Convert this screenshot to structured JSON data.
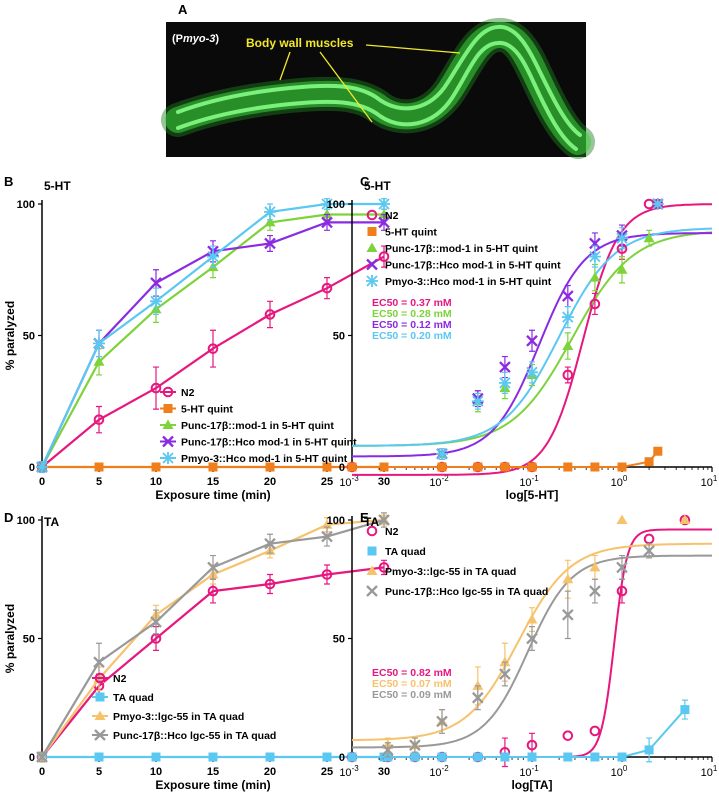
{
  "panel_a": {
    "letter": "A",
    "label_prefix": "(P",
    "label_gene": "myo-3",
    "label_suffix": ")",
    "annotation": "Body wall muscles",
    "bg_color": "#0a0a0a",
    "worm_color": "#3bd13b",
    "annotation_color": "#f2e92a"
  },
  "chart_data": [
    {
      "panel": "B",
      "type": "line",
      "tag": "5-HT",
      "xlabel": "Exposure time (min)",
      "ylabel": "% paralyzed",
      "xlim": [
        0,
        30
      ],
      "ylim": [
        0,
        100
      ],
      "xticks": [
        "0",
        "5",
        "10",
        "15",
        "20",
        "25",
        "30"
      ],
      "yticks": [
        "0",
        "50",
        "100"
      ],
      "x": [
        0,
        5,
        10,
        15,
        20,
        25,
        30
      ],
      "legend_position": "bottom-right",
      "series": [
        {
          "name": "N2",
          "color": "#e6177f",
          "marker": "circle",
          "values": [
            0,
            18,
            30,
            45,
            58,
            68,
            80
          ],
          "err": [
            2,
            5,
            8,
            7,
            5,
            4,
            4
          ]
        },
        {
          "name": "5-HT quint",
          "color": "#f07e1a",
          "marker": "square",
          "values": [
            0,
            0,
            0,
            0,
            0,
            0,
            0
          ],
          "err": [
            0,
            0,
            0,
            0,
            0,
            0,
            0
          ]
        },
        {
          "name": "Punc-17β::mod-1 in 5-HT quint",
          "color": "#7ed23a",
          "marker": "triangle",
          "values": [
            0,
            40,
            60,
            76,
            93,
            96,
            96
          ],
          "err": [
            2,
            5,
            5,
            4,
            3,
            2,
            2
          ]
        },
        {
          "name": "Punc-17β::Hco mod-1 in 5-HT quint",
          "color": "#8a2be2",
          "marker": "x",
          "values": [
            0,
            47,
            70,
            82,
            85,
            93,
            93
          ],
          "err": [
            2,
            5,
            5,
            4,
            3,
            3,
            3
          ]
        },
        {
          "name": "Pmyo-3::Hco mod-1 in 5-HT quint",
          "color": "#5ac8f0",
          "marker": "asterisk",
          "values": [
            0,
            47,
            63,
            80,
            97,
            100,
            100
          ],
          "err": [
            2,
            5,
            5,
            4,
            3,
            2,
            2
          ]
        }
      ]
    },
    {
      "panel": "C",
      "type": "line",
      "tag": "5-HT",
      "xlabel": "log[5-HT]",
      "xscale": "log",
      "xlim": [
        0.001,
        10
      ],
      "ylim": [
        0,
        100
      ],
      "yticks": [
        "0",
        "50",
        "100"
      ],
      "legend_position": "top-left",
      "ec50": [
        {
          "text": "EC50 = 0.37 mM",
          "color": "#e6177f"
        },
        {
          "text": "EC50 = 0.28 mM",
          "color": "#7ed23a"
        },
        {
          "text": "EC50 = 0.12 mM",
          "color": "#8a2be2"
        },
        {
          "text": "EC50 = 0.20 mM",
          "color": "#5ac8f0"
        }
      ],
      "series": [
        {
          "name": "N2",
          "color": "#e6177f",
          "marker": "circle",
          "x": [
            0.001,
            0.01,
            0.025,
            0.05,
            0.1,
            0.25,
            0.5,
            1,
            2,
            2.5
          ],
          "values": [
            0,
            0,
            0,
            0,
            0,
            35,
            62,
            83,
            100,
            100
          ],
          "err": [
            0,
            0,
            0,
            0,
            0,
            3,
            4,
            4,
            0,
            0
          ],
          "fit": {
            "bottom": -3,
            "top": 100,
            "ec50": 0.37,
            "hill": 2.2
          }
        },
        {
          "name": "5-HT quint",
          "color": "#f07e1a",
          "marker": "square",
          "x": [
            0.001,
            0.01,
            0.025,
            0.05,
            0.1,
            0.25,
            0.5,
            1,
            2,
            2.5
          ],
          "values": [
            0,
            0,
            0,
            0,
            0,
            0,
            0,
            0,
            2,
            6
          ],
          "err": [
            0,
            0,
            0,
            0,
            0,
            0,
            0,
            0,
            0,
            0
          ]
        },
        {
          "name": "Punc-17β::mod-1 in 5-HT quint",
          "color": "#7ed23a",
          "marker": "triangle",
          "x": [
            0.01,
            0.025,
            0.05,
            0.1,
            0.25,
            0.5,
            1,
            2
          ],
          "values": [
            5,
            25,
            30,
            35,
            46,
            72,
            75,
            87
          ],
          "err": [
            2,
            4,
            4,
            4,
            5,
            5,
            5,
            3
          ],
          "fit": {
            "bottom": 8,
            "top": 90,
            "ec50": 0.28,
            "hill": 1.3
          }
        },
        {
          "name": "Punc-17β::Hco mod-1 in 5-HT quint",
          "color": "#8a2be2",
          "marker": "x",
          "x": [
            0.01,
            0.025,
            0.05,
            0.1,
            0.25,
            0.5,
            1,
            2.5
          ],
          "values": [
            5,
            26,
            38,
            48,
            65,
            85,
            88,
            100
          ],
          "err": [
            2,
            3,
            4,
            4,
            4,
            4,
            4,
            0
          ],
          "fit": {
            "bottom": 4,
            "top": 89,
            "ec50": 0.12,
            "hill": 1.7
          }
        },
        {
          "name": "Pmyo-3::Hco mod-1 in 5-HT quint",
          "color": "#5ac8f0",
          "marker": "asterisk",
          "x": [
            0.01,
            0.025,
            0.05,
            0.1,
            0.25,
            0.5,
            1,
            2.5
          ],
          "values": [
            5,
            25,
            32,
            36,
            57,
            80,
            87,
            100
          ],
          "err": [
            2,
            3,
            4,
            4,
            4,
            4,
            4,
            0
          ],
          "fit": {
            "bottom": 8,
            "top": 91,
            "ec50": 0.2,
            "hill": 1.4
          }
        }
      ]
    },
    {
      "panel": "D",
      "type": "line",
      "tag": "TA",
      "xlabel": "Exposure time (min)",
      "ylabel": "% paralyzed",
      "xlim": [
        0,
        30
      ],
      "ylim": [
        0,
        100
      ],
      "xticks": [
        "0",
        "5",
        "10",
        "15",
        "20",
        "25",
        "30"
      ],
      "yticks": [
        "0",
        "50",
        "100"
      ],
      "x": [
        0,
        5,
        10,
        15,
        20,
        25,
        30
      ],
      "legend_position": "bottom-right",
      "series": [
        {
          "name": "N2",
          "color": "#e6177f",
          "marker": "circle",
          "values": [
            0,
            30,
            50,
            70,
            73,
            77,
            80
          ],
          "err": [
            2,
            5,
            5,
            5,
            4,
            4,
            3
          ]
        },
        {
          "name": "TA quad",
          "color": "#5ac8f0",
          "marker": "square",
          "values": [
            0,
            0,
            0,
            0,
            0,
            0,
            0
          ],
          "err": [
            0,
            0,
            0,
            0,
            0,
            0,
            0
          ]
        },
        {
          "name": "Pmyo-3::lgc-55 in TA quad",
          "color": "#f6c26b",
          "marker": "triangle",
          "values": [
            0,
            33,
            60,
            77,
            87,
            98,
            100
          ],
          "err": [
            2,
            5,
            4,
            4,
            3,
            3,
            2
          ]
        },
        {
          "name": "Punc-17β::Hco lgc-55 in TA quad",
          "color": "#999999",
          "marker": "x",
          "values": [
            0,
            40,
            57,
            80,
            90,
            93,
            100
          ],
          "err": [
            2,
            8,
            5,
            5,
            4,
            4,
            3
          ]
        }
      ]
    },
    {
      "panel": "E",
      "type": "line",
      "tag": "TA",
      "xlabel": "log[TA]",
      "xscale": "log",
      "xlim": [
        0.001,
        10
      ],
      "ylim": [
        0,
        100
      ],
      "yticks": [
        "0",
        "50",
        "100"
      ],
      "legend_position": "top-left",
      "ec50": [
        {
          "text": "EC50 = 0.82 mM",
          "color": "#e6177f"
        },
        {
          "text": "EC50 = 0.07 mM",
          "color": "#f6c26b"
        },
        {
          "text": "EC50 = 0.09 mM",
          "color": "#999999"
        }
      ],
      "series": [
        {
          "name": "N2",
          "color": "#e6177f",
          "marker": "circle",
          "x": [
            0.001,
            0.0025,
            0.005,
            0.01,
            0.025,
            0.05,
            0.1,
            0.25,
            0.5,
            1,
            2,
            5
          ],
          "values": [
            0,
            0,
            0,
            0,
            0,
            2,
            5,
            9,
            11,
            70,
            92,
            100
          ],
          "err": [
            0,
            0,
            0,
            0,
            0,
            6,
            5,
            0,
            0,
            5,
            0,
            0
          ],
          "fit": {
            "bottom": 0,
            "top": 96,
            "ec50": 0.82,
            "hill": 6
          }
        },
        {
          "name": "TA quad",
          "color": "#5ac8f0",
          "marker": "square",
          "x": [
            0.001,
            0.0025,
            0.005,
            0.01,
            0.025,
            0.05,
            0.1,
            0.25,
            0.5,
            1,
            2,
            5
          ],
          "values": [
            0,
            0,
            0,
            0,
            0,
            0,
            0,
            0,
            0,
            0,
            3,
            20
          ],
          "err": [
            0,
            0,
            0,
            0,
            0,
            0,
            0,
            0,
            0,
            0,
            5,
            4
          ]
        },
        {
          "name": "Pmyo-3::lgc-55 in TA quad",
          "color": "#f6c26b",
          "marker": "triangle",
          "x": [
            0.0025,
            0.005,
            0.01,
            0.025,
            0.05,
            0.1,
            0.25,
            0.5,
            1,
            5
          ],
          "values": [
            5,
            5,
            15,
            30,
            40,
            58,
            75,
            80,
            100,
            100
          ],
          "err": [
            3,
            3,
            5,
            8,
            8,
            5,
            8,
            5,
            0,
            0
          ],
          "fit": {
            "bottom": 7,
            "top": 90,
            "ec50": 0.07,
            "hill": 1.5
          }
        },
        {
          "name": "Punc-17β::Hco lgc-55 in TA quad",
          "color": "#999999",
          "marker": "x",
          "x": [
            0.0025,
            0.005,
            0.01,
            0.025,
            0.05,
            0.1,
            0.25,
            0.5,
            1,
            2
          ],
          "values": [
            3,
            5,
            15,
            25,
            35,
            50,
            60,
            70,
            80,
            87
          ],
          "err": [
            3,
            3,
            5,
            5,
            5,
            5,
            10,
            5,
            5,
            3
          ],
          "fit": {
            "bottom": 4,
            "top": 85,
            "ec50": 0.09,
            "hill": 1.8
          }
        }
      ]
    }
  ]
}
